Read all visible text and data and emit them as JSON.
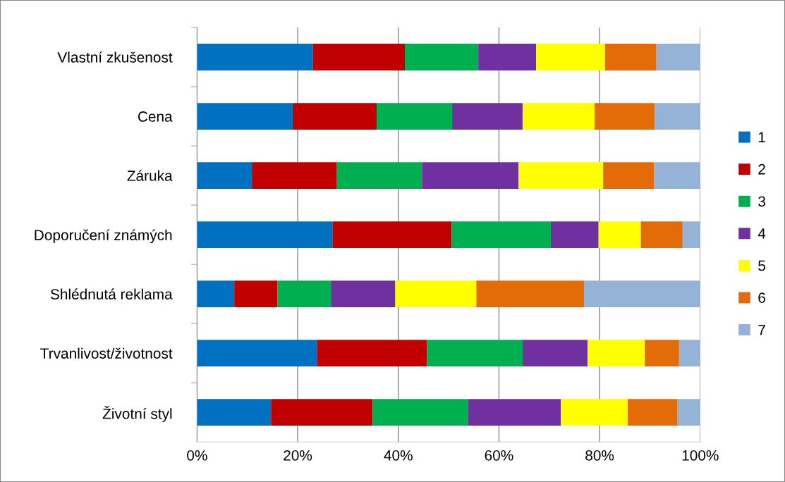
{
  "chart_data": {
    "type": "bar",
    "orientation": "horizontal",
    "stacked": true,
    "categories": [
      "Vlastní zkušenost",
      "Cena",
      "Záruka",
      "Doporučení známých",
      "Shlédnutá reklama",
      "Trvanlivost/životnost",
      "Životní styl"
    ],
    "series": [
      {
        "name": "1",
        "color": "#0070c0",
        "values": [
          23.0,
          19.0,
          10.9,
          26.9,
          7.4,
          23.9,
          14.7
        ]
      },
      {
        "name": "2",
        "color": "#c00000",
        "values": [
          18.3,
          16.7,
          16.8,
          23.7,
          8.6,
          21.8,
          20.2
        ]
      },
      {
        "name": "3",
        "color": "#00b050",
        "values": [
          14.6,
          15.0,
          17.0,
          19.7,
          10.6,
          19.0,
          19.0
        ]
      },
      {
        "name": "4",
        "color": "#7030a0",
        "values": [
          11.5,
          14.0,
          19.2,
          9.5,
          12.8,
          12.9,
          18.4
        ]
      },
      {
        "name": "5",
        "color": "#ffff00",
        "values": [
          13.7,
          14.3,
          16.8,
          8.4,
          16.1,
          11.4,
          13.3
        ]
      },
      {
        "name": "6",
        "color": "#e36c09",
        "values": [
          10.2,
          12.0,
          10.1,
          8.3,
          21.4,
          6.8,
          9.9
        ]
      },
      {
        "name": "7",
        "color": "#95b3d7",
        "values": [
          8.7,
          9.0,
          9.2,
          3.5,
          23.1,
          4.2,
          4.5
        ]
      }
    ],
    "xlim": [
      0,
      100
    ],
    "xticks": [
      {
        "value": 0,
        "label": "0%"
      },
      {
        "value": 20,
        "label": "20%"
      },
      {
        "value": 40,
        "label": "40%"
      },
      {
        "value": 60,
        "label": "60%"
      },
      {
        "value": 80,
        "label": "80%"
      },
      {
        "value": 100,
        "label": "100%"
      }
    ],
    "grid": "x",
    "legend": "right"
  }
}
